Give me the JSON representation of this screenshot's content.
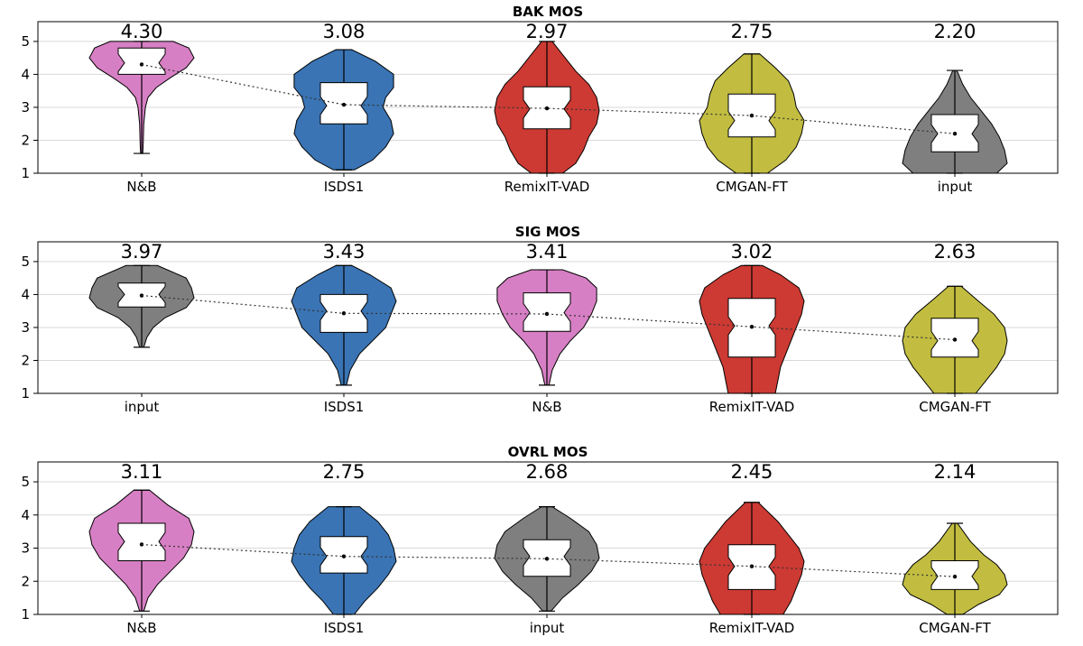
{
  "chart_data": [
    {
      "type": "violin",
      "title": "BAK MOS",
      "ylim": [
        1,
        5.6
      ],
      "yticks": [
        1,
        2,
        3,
        4,
        5
      ],
      "grid": "horizontal",
      "categories": [
        "N&B",
        "ISDS1",
        "RemixIT-VAD",
        "CMGAN-FT",
        "input"
      ],
      "series": [
        {
          "category": "N&B",
          "color": "#d77fc4",
          "mean": 4.3,
          "mean_label": "4.30",
          "min": 1.6,
          "max": 5.0,
          "q1": 4.0,
          "median": 4.35,
          "q3": 4.8,
          "density": [
            [
              1.6,
              0.02
            ],
            [
              1.9,
              0.03
            ],
            [
              2.5,
              0.04
            ],
            [
              3.0,
              0.07
            ],
            [
              3.3,
              0.12
            ],
            [
              3.6,
              0.28
            ],
            [
              3.9,
              0.55
            ],
            [
              4.2,
              0.85
            ],
            [
              4.5,
              1.0
            ],
            [
              4.8,
              0.9
            ],
            [
              5.0,
              0.6
            ]
          ]
        },
        {
          "category": "ISDS1",
          "color": "#3a74b4",
          "mean": 3.08,
          "mean_label": "3.08",
          "min": 1.1,
          "max": 4.75,
          "q1": 2.5,
          "median": 3.05,
          "q3": 3.75,
          "density": [
            [
              1.1,
              0.2
            ],
            [
              1.4,
              0.55
            ],
            [
              1.8,
              0.8
            ],
            [
              2.2,
              0.95
            ],
            [
              2.6,
              0.9
            ],
            [
              3.0,
              0.75
            ],
            [
              3.3,
              0.8
            ],
            [
              3.6,
              0.95
            ],
            [
              4.0,
              0.95
            ],
            [
              4.4,
              0.6
            ],
            [
              4.75,
              0.15
            ]
          ]
        },
        {
          "category": "RemixIT-VAD",
          "color": "#cc3a33",
          "mean": 2.97,
          "mean_label": "2.97",
          "min": 1.0,
          "max": 5.0,
          "q1": 2.35,
          "median": 2.95,
          "q3": 3.62,
          "density": [
            [
              1.0,
              0.3
            ],
            [
              1.3,
              0.55
            ],
            [
              1.7,
              0.7
            ],
            [
              2.1,
              0.8
            ],
            [
              2.5,
              0.95
            ],
            [
              2.9,
              1.0
            ],
            [
              3.3,
              0.95
            ],
            [
              3.7,
              0.8
            ],
            [
              4.1,
              0.55
            ],
            [
              4.5,
              0.35
            ],
            [
              5.0,
              0.1
            ]
          ]
        },
        {
          "category": "CMGAN-FT",
          "color": "#c2bd40",
          "mean": 2.75,
          "mean_label": "2.75",
          "min": 1.0,
          "max": 4.62,
          "q1": 2.1,
          "median": 2.6,
          "q3": 3.4,
          "density": [
            [
              1.0,
              0.3
            ],
            [
              1.4,
              0.65
            ],
            [
              1.8,
              0.85
            ],
            [
              2.2,
              0.95
            ],
            [
              2.6,
              1.0
            ],
            [
              3.0,
              0.85
            ],
            [
              3.4,
              0.8
            ],
            [
              3.8,
              0.7
            ],
            [
              4.2,
              0.45
            ],
            [
              4.62,
              0.15
            ]
          ]
        },
        {
          "category": "input",
          "color": "#7f7f7f",
          "mean": 2.2,
          "mean_label": "2.20",
          "min": 1.0,
          "max": 4.12,
          "q1": 1.65,
          "median": 2.2,
          "q3": 2.78,
          "density": [
            [
              1.0,
              0.8
            ],
            [
              1.3,
              1.0
            ],
            [
              1.7,
              0.95
            ],
            [
              2.1,
              0.85
            ],
            [
              2.5,
              0.7
            ],
            [
              2.9,
              0.5
            ],
            [
              3.3,
              0.3
            ],
            [
              3.7,
              0.15
            ],
            [
              4.12,
              0.04
            ]
          ]
        }
      ]
    },
    {
      "type": "violin",
      "title": "SIG MOS",
      "ylim": [
        1,
        5.6
      ],
      "yticks": [
        1,
        2,
        3,
        4,
        5
      ],
      "grid": "horizontal",
      "categories": [
        "input",
        "ISDS1",
        "N&B",
        "RemixIT-VAD",
        "CMGAN-FT"
      ],
      "series": [
        {
          "category": "input",
          "color": "#7f7f7f",
          "mean": 3.97,
          "mean_label": "3.97",
          "min": 2.4,
          "max": 4.88,
          "q1": 3.62,
          "median": 4.0,
          "q3": 4.35,
          "density": [
            [
              2.4,
              0.04
            ],
            [
              2.7,
              0.1
            ],
            [
              3.0,
              0.22
            ],
            [
              3.3,
              0.45
            ],
            [
              3.6,
              0.85
            ],
            [
              3.9,
              1.0
            ],
            [
              4.2,
              0.95
            ],
            [
              4.5,
              0.85
            ],
            [
              4.88,
              0.3
            ]
          ]
        },
        {
          "category": "ISDS1",
          "color": "#3a74b4",
          "mean": 3.43,
          "mean_label": "3.43",
          "min": 1.25,
          "max": 4.88,
          "q1": 2.85,
          "median": 3.5,
          "q3": 4.0,
          "density": [
            [
              1.25,
              0.05
            ],
            [
              1.7,
              0.12
            ],
            [
              2.2,
              0.3
            ],
            [
              2.6,
              0.55
            ],
            [
              3.0,
              0.8
            ],
            [
              3.4,
              0.9
            ],
            [
              3.8,
              1.0
            ],
            [
              4.2,
              0.9
            ],
            [
              4.6,
              0.5
            ],
            [
              4.88,
              0.15
            ]
          ]
        },
        {
          "category": "N&B",
          "color": "#d77fc4",
          "mean": 3.41,
          "mean_label": "3.41",
          "min": 1.25,
          "max": 4.75,
          "q1": 2.88,
          "median": 3.45,
          "q3": 4.05,
          "density": [
            [
              1.25,
              0.04
            ],
            [
              1.7,
              0.1
            ],
            [
              2.2,
              0.25
            ],
            [
              2.6,
              0.45
            ],
            [
              3.0,
              0.7
            ],
            [
              3.4,
              0.85
            ],
            [
              3.8,
              0.95
            ],
            [
              4.2,
              0.95
            ],
            [
              4.5,
              0.75
            ],
            [
              4.75,
              0.3
            ]
          ]
        },
        {
          "category": "RemixIT-VAD",
          "color": "#cc3a33",
          "mean": 3.02,
          "mean_label": "3.02",
          "min": 1.0,
          "max": 4.88,
          "q1": 2.1,
          "median": 3.05,
          "q3": 3.88,
          "density": [
            [
              1.0,
              0.45
            ],
            [
              1.4,
              0.5
            ],
            [
              1.8,
              0.55
            ],
            [
              2.2,
              0.65
            ],
            [
              2.6,
              0.75
            ],
            [
              3.0,
              0.85
            ],
            [
              3.4,
              0.95
            ],
            [
              3.8,
              1.0
            ],
            [
              4.2,
              0.9
            ],
            [
              4.6,
              0.55
            ],
            [
              4.88,
              0.2
            ]
          ]
        },
        {
          "category": "CMGAN-FT",
          "color": "#c2bd40",
          "mean": 2.63,
          "mean_label": "2.63",
          "min": 1.0,
          "max": 4.25,
          "q1": 2.1,
          "median": 2.6,
          "q3": 3.28,
          "density": [
            [
              1.0,
              0.4
            ],
            [
              1.4,
              0.6
            ],
            [
              1.8,
              0.8
            ],
            [
              2.2,
              0.95
            ],
            [
              2.6,
              1.0
            ],
            [
              3.0,
              0.95
            ],
            [
              3.4,
              0.75
            ],
            [
              3.8,
              0.45
            ],
            [
              4.25,
              0.12
            ]
          ]
        }
      ]
    },
    {
      "type": "violin",
      "title": "OVRL MOS",
      "ylim": [
        1,
        5.6
      ],
      "yticks": [
        1,
        2,
        3,
        4,
        5
      ],
      "grid": "horizontal",
      "categories": [
        "N&B",
        "ISDS1",
        "input",
        "RemixIT-VAD",
        "CMGAN-FT"
      ],
      "series": [
        {
          "category": "N&B",
          "color": "#d77fc4",
          "mean": 3.11,
          "mean_label": "3.11",
          "min": 1.1,
          "max": 4.75,
          "q1": 2.62,
          "median": 3.2,
          "q3": 3.75,
          "density": [
            [
              1.1,
              0.04
            ],
            [
              1.5,
              0.12
            ],
            [
              1.9,
              0.3
            ],
            [
              2.3,
              0.55
            ],
            [
              2.7,
              0.8
            ],
            [
              3.1,
              0.95
            ],
            [
              3.5,
              1.0
            ],
            [
              3.9,
              0.9
            ],
            [
              4.3,
              0.5
            ],
            [
              4.75,
              0.15
            ]
          ]
        },
        {
          "category": "ISDS1",
          "color": "#3a74b4",
          "mean": 2.75,
          "mean_label": "2.75",
          "min": 1.0,
          "max": 4.25,
          "q1": 2.25,
          "median": 2.75,
          "q3": 3.35,
          "density": [
            [
              1.0,
              0.2
            ],
            [
              1.4,
              0.4
            ],
            [
              1.8,
              0.65
            ],
            [
              2.2,
              0.85
            ],
            [
              2.6,
              1.0
            ],
            [
              3.0,
              0.95
            ],
            [
              3.4,
              0.85
            ],
            [
              3.8,
              0.65
            ],
            [
              4.25,
              0.3
            ]
          ]
        },
        {
          "category": "input",
          "color": "#7f7f7f",
          "mean": 2.68,
          "mean_label": "2.68",
          "min": 1.1,
          "max": 4.25,
          "q1": 2.15,
          "median": 2.75,
          "q3": 3.25,
          "density": [
            [
              1.1,
              0.08
            ],
            [
              1.5,
              0.3
            ],
            [
              1.9,
              0.6
            ],
            [
              2.3,
              0.85
            ],
            [
              2.7,
              1.0
            ],
            [
              3.1,
              0.95
            ],
            [
              3.5,
              0.8
            ],
            [
              3.9,
              0.45
            ],
            [
              4.25,
              0.1
            ]
          ]
        },
        {
          "category": "RemixIT-VAD",
          "color": "#cc3a33",
          "mean": 2.45,
          "mean_label": "2.45",
          "min": 1.0,
          "max": 4.38,
          "q1": 1.75,
          "median": 2.45,
          "q3": 3.1,
          "density": [
            [
              1.0,
              0.6
            ],
            [
              1.4,
              0.75
            ],
            [
              1.8,
              0.85
            ],
            [
              2.2,
              0.95
            ],
            [
              2.6,
              1.0
            ],
            [
              3.0,
              0.9
            ],
            [
              3.4,
              0.7
            ],
            [
              3.8,
              0.5
            ],
            [
              4.38,
              0.12
            ]
          ]
        },
        {
          "category": "CMGAN-FT",
          "color": "#c2bd40",
          "mean": 2.14,
          "mean_label": "2.14",
          "min": 1.0,
          "max": 3.75,
          "q1": 1.75,
          "median": 2.15,
          "q3": 2.62,
          "density": [
            [
              1.0,
              0.15
            ],
            [
              1.3,
              0.45
            ],
            [
              1.6,
              0.85
            ],
            [
              1.9,
              1.0
            ],
            [
              2.2,
              0.95
            ],
            [
              2.5,
              0.8
            ],
            [
              2.8,
              0.55
            ],
            [
              3.2,
              0.3
            ],
            [
              3.75,
              0.05
            ]
          ]
        }
      ]
    }
  ]
}
